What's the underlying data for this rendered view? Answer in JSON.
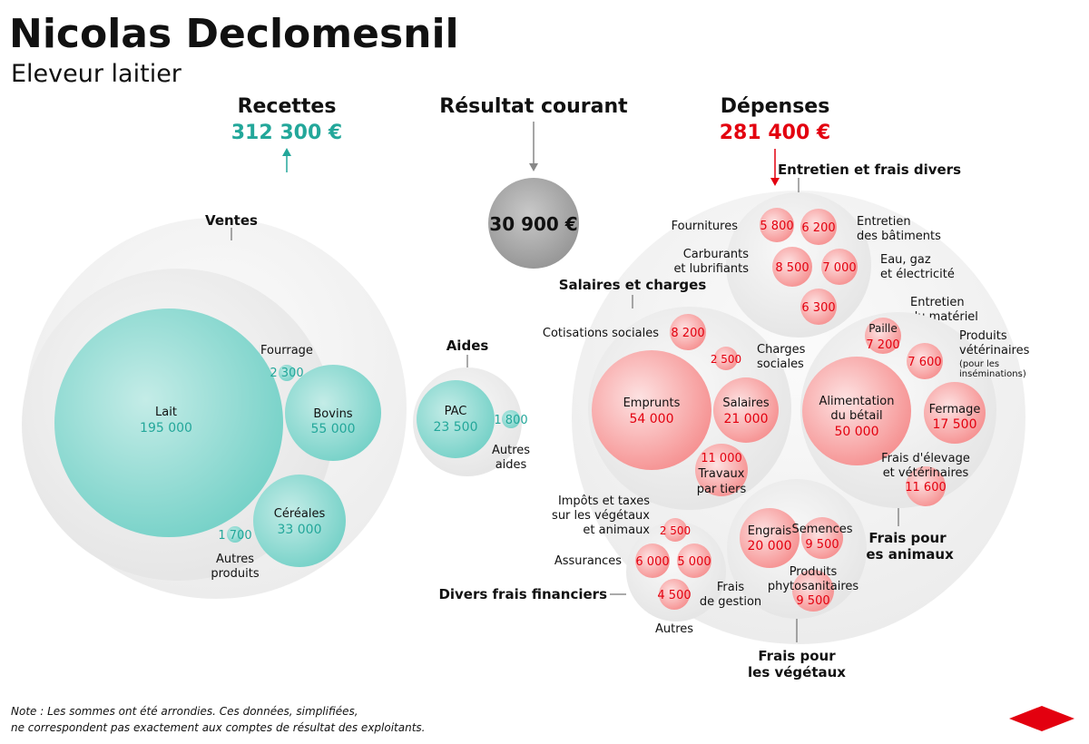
{
  "header": {
    "name": "Nicolas Declomesnil",
    "subtitle": "Eleveur laitier"
  },
  "recettes": {
    "title": "Recettes",
    "total": "312 300 €",
    "color": "#23a79a",
    "groups": {
      "ventes": "Ventes",
      "aides": "Aides"
    },
    "items": {
      "lait": {
        "label": "Lait",
        "value": "195 000"
      },
      "bovins": {
        "label": "Bovins",
        "value": "55 000"
      },
      "cereales": {
        "label": "Céréales",
        "value": "33 000"
      },
      "fourrage": {
        "label": "Fourrage",
        "value": "2 300"
      },
      "autres_produits": {
        "label_1": "Autres",
        "label_2": "produits",
        "value": "1 700"
      },
      "pac": {
        "label": "PAC",
        "value": "23 500"
      },
      "autres_aides": {
        "label_1": "Autres",
        "label_2": "aides",
        "value": "1 800"
      }
    }
  },
  "resultat": {
    "title": "Résultat courant",
    "value": "30 900 €"
  },
  "depenses": {
    "title": "Dépenses",
    "total": "281 400 €",
    "color": "#e3000f",
    "groups": {
      "entretien": "Entretien et frais divers",
      "salaires": "Salaires et charges",
      "animaux_1": "Frais pour",
      "animaux_2": "les animaux",
      "vegetaux_1": "Frais pour",
      "vegetaux_2": "les végétaux",
      "financiers": "Divers frais financiers"
    },
    "items": {
      "fournitures": {
        "label": "Fournitures",
        "value": "5 800"
      },
      "entretien_batiments": {
        "label_1": "Entretien",
        "label_2": "des bâtiments",
        "value": "6 200"
      },
      "carburants": {
        "label_1": "Carburants",
        "label_2": "et lubrifiants",
        "value": "8 500"
      },
      "eau": {
        "label_1": "Eau, gaz",
        "label_2": "et électricité",
        "value": "7 000"
      },
      "entretien_materiel": {
        "label_1": "Entretien",
        "label_2": "du matériel",
        "value": "6 300"
      },
      "cotisations": {
        "label": "Cotisations sociales",
        "value": "8 200"
      },
      "charges_sociales": {
        "label_1": "Charges",
        "label_2": "sociales",
        "value": "2 500"
      },
      "emprunts": {
        "label": "Emprunts",
        "value": "54 000"
      },
      "salaires": {
        "label": "Salaires",
        "value": "21 000"
      },
      "travaux": {
        "label_1": "Travaux",
        "label_2": "par tiers",
        "value": "11 000"
      },
      "paille": {
        "label": "Paille",
        "value": "7 200"
      },
      "veterinaires": {
        "label_1": "Produits",
        "label_2": "vétérinaires",
        "label_3": "(pour les",
        "label_4": "inséminations)",
        "value": "7 600"
      },
      "alimentation": {
        "label_1": "Alimentation",
        "label_2": "du bétail",
        "value": "50 000"
      },
      "fermage": {
        "label": "Fermage",
        "value": "17 500"
      },
      "frais_elevage": {
        "label_1": "Frais d'élevage",
        "label_2": "et vétérinaires",
        "value": "11 600"
      },
      "impots": {
        "label_1": "Impôts et taxes",
        "label_2": "sur les végétaux",
        "label_3": "et animaux",
        "value": "2 500"
      },
      "assurances": {
        "label": "Assurances",
        "value": "6 000"
      },
      "frais_gestion": {
        "label_1": "Frais",
        "label_2": "de gestion",
        "value": "5 000"
      },
      "autres": {
        "label": "Autres",
        "value": "4 500"
      },
      "engrais": {
        "label": "Engrais",
        "value": "20 000"
      },
      "semences": {
        "label": "Semences",
        "value": "9 500"
      },
      "phyto": {
        "label_1": "Produits",
        "label_2": "phytosanitaires",
        "value": "9 500"
      }
    }
  },
  "note": {
    "line_1": "Note : Les sommes ont été arrondies. Ces données, simplifiées,",
    "line_2": "ne correspondent pas exactement aux comptes de résultat des exploitants."
  },
  "logo": {
    "name": "red-diamond-logo",
    "color": "#e3000f"
  }
}
